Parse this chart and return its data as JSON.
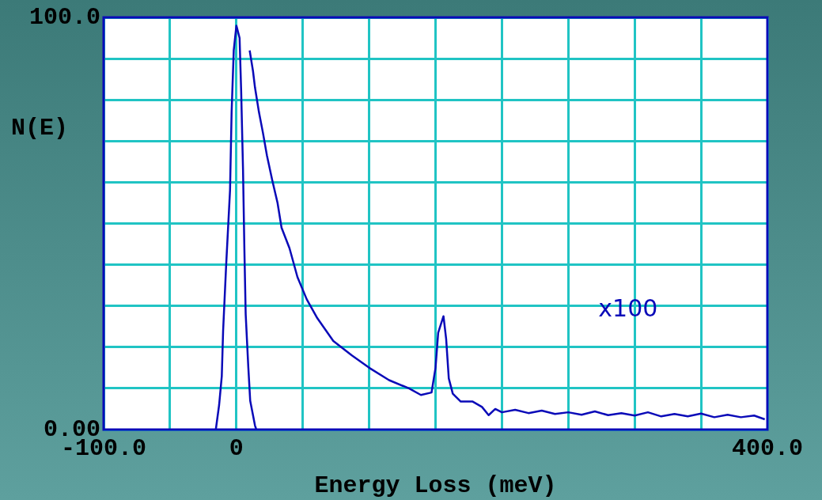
{
  "chart_data": {
    "type": "line",
    "xlabel": "Energy Loss (meV)",
    "ylabel": "N(E)",
    "annotations": [
      "x100"
    ],
    "xlim": [
      -100,
      400
    ],
    "xticks": [
      {
        "value": -100,
        "label": "-100.0"
      },
      {
        "value": -50,
        "label": null
      },
      {
        "value": 0,
        "label": "0"
      },
      {
        "value": 50,
        "label": null
      },
      {
        "value": 100,
        "label": null
      },
      {
        "value": 150,
        "label": null
      },
      {
        "value": 200,
        "label": null
      },
      {
        "value": 250,
        "label": null
      },
      {
        "value": 300,
        "label": null
      },
      {
        "value": 350,
        "label": null
      },
      {
        "value": 400,
        "label": "400.0"
      }
    ],
    "ylim": [
      0,
      100
    ],
    "yticks": [
      {
        "value": 0,
        "label": "0.00"
      },
      {
        "value": 10,
        "label": null
      },
      {
        "value": 20,
        "label": null
      },
      {
        "value": 30,
        "label": null
      },
      {
        "value": 40,
        "label": null
      },
      {
        "value": 50,
        "label": null
      },
      {
        "value": 60,
        "label": null
      },
      {
        "value": 70,
        "label": null
      },
      {
        "value": 80,
        "label": null
      },
      {
        "value": 90,
        "label": null
      },
      {
        "value": 100,
        "label": "100.0"
      }
    ],
    "grid": true,
    "legend": false,
    "marker": "none",
    "line_style": "solid",
    "series": [
      {
        "color": "#0a0ab8",
        "x": [
          -15.5,
          -13,
          -11,
          -10,
          -7.7,
          -4.8,
          -3.6,
          -2,
          0,
          2.4,
          3.6,
          5,
          6,
          7,
          9,
          10.4,
          14,
          15
        ],
        "values": [
          0,
          6,
          13,
          24,
          40,
          58,
          77,
          92,
          98,
          95,
          82,
          63,
          44,
          28,
          15,
          7,
          1,
          0
        ]
      },
      {
        "color": "#0a0ab8",
        "x": [
          10,
          12.5,
          14,
          17,
          20,
          23,
          27,
          31,
          34,
          40,
          46,
          53,
          61,
          73,
          87,
          100,
          115,
          130,
          139,
          147,
          150,
          152,
          156,
          158,
          160,
          163,
          169,
          178,
          185,
          190,
          195,
          200,
          210,
          220,
          230,
          240,
          250,
          260,
          270,
          280,
          290,
          300,
          310,
          320,
          330,
          340,
          350,
          360,
          370,
          380,
          390,
          398
        ],
        "values": [
          92,
          87,
          83,
          77,
          72,
          66.5,
          60.5,
          55,
          49,
          44,
          37,
          31.6,
          27,
          21.5,
          18,
          15,
          12,
          10,
          8.4,
          9,
          15,
          23.5,
          27.5,
          22,
          12.4,
          8.7,
          6.8,
          6.8,
          5.5,
          3.5,
          5,
          4.2,
          4.8,
          4,
          4.6,
          3.8,
          4.2,
          3.6,
          4.4,
          3.5,
          4,
          3.4,
          4.2,
          3.2,
          3.8,
          3.2,
          3.9,
          3,
          3.6,
          3,
          3.4,
          2.5
        ]
      }
    ]
  }
}
